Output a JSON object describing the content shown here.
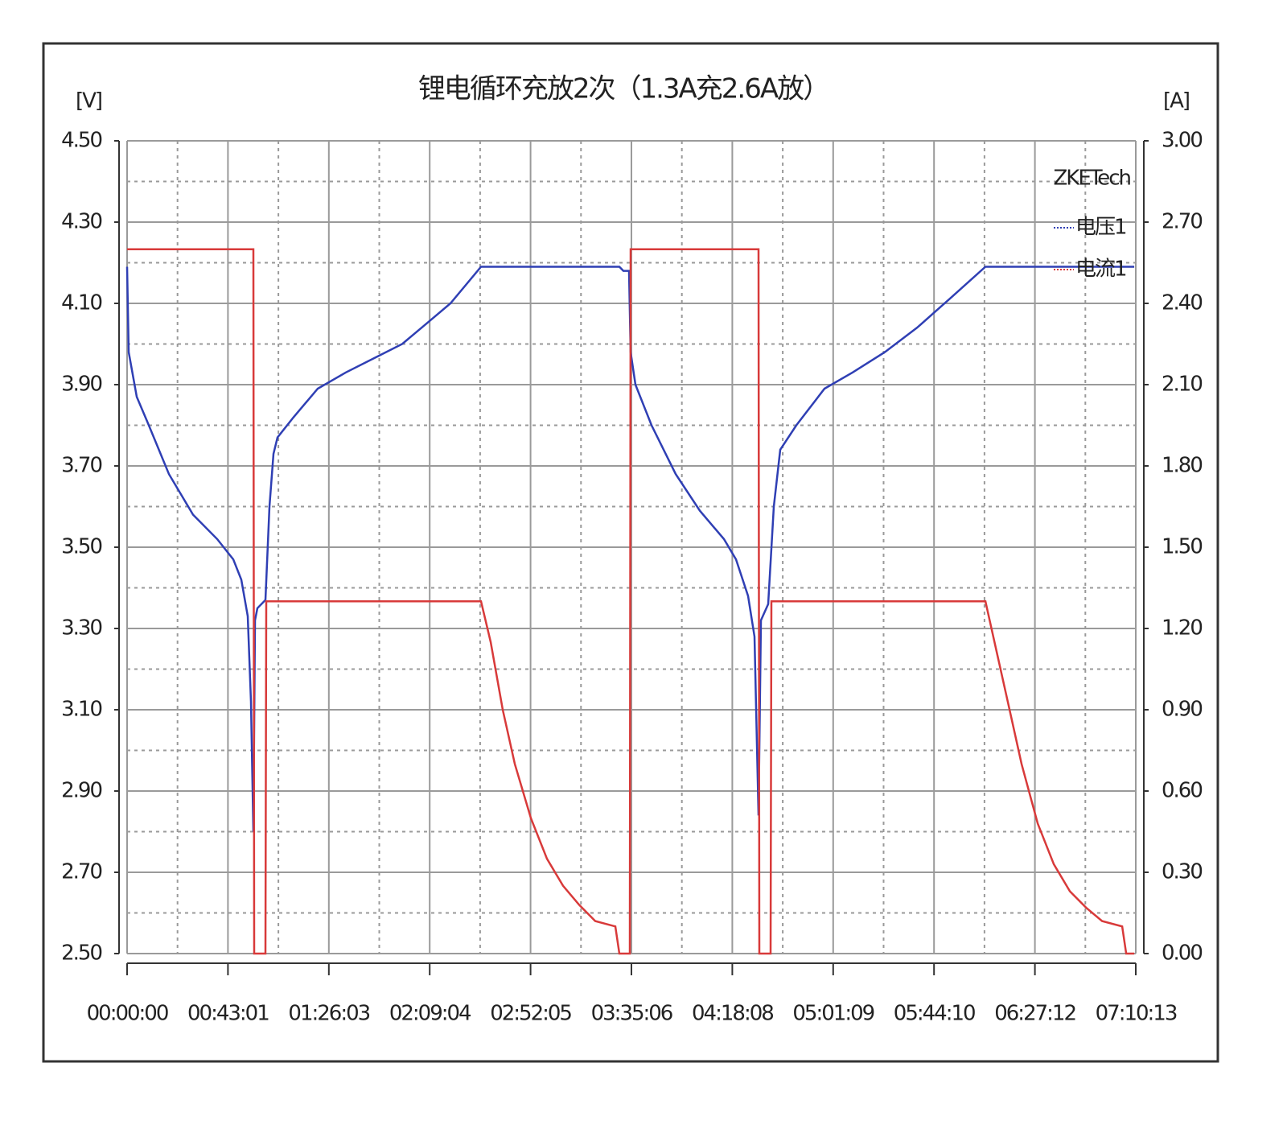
{
  "chart_data": {
    "type": "line",
    "title": "锂电循环充放2次（1.3A充2.6A放）",
    "y_label": "[V]",
    "y2_label": "[A]",
    "watermark": "ZKETech",
    "grid": true,
    "legend": "right",
    "xlim": [
      0,
      25813
    ],
    "xticks": [
      {
        "value": 0,
        "label": "00:00:00"
      },
      {
        "value": 2581,
        "label": "00:43:01"
      },
      {
        "value": 5163,
        "label": "01:26:03"
      },
      {
        "value": 7744,
        "label": "02:09:04"
      },
      {
        "value": 10325,
        "label": "02:52:05"
      },
      {
        "value": 12906,
        "label": "03:35:06"
      },
      {
        "value": 15488,
        "label": "04:18:08"
      },
      {
        "value": 18069,
        "label": "05:01:09"
      },
      {
        "value": 20650,
        "label": "05:44:10"
      },
      {
        "value": 23232,
        "label": "06:27:12"
      },
      {
        "value": 25813,
        "label": "07:10:13"
      }
    ],
    "ylim": [
      2.5,
      4.5
    ],
    "yticks": [
      {
        "value": 2.5,
        "label": "2.50"
      },
      {
        "value": 2.7,
        "label": "2.70"
      },
      {
        "value": 2.9,
        "label": "2.90"
      },
      {
        "value": 3.1,
        "label": "3.10"
      },
      {
        "value": 3.3,
        "label": "3.30"
      },
      {
        "value": 3.5,
        "label": "3.50"
      },
      {
        "value": 3.7,
        "label": "3.70"
      },
      {
        "value": 3.9,
        "label": "3.90"
      },
      {
        "value": 4.1,
        "label": "4.10"
      },
      {
        "value": 4.3,
        "label": "4.30"
      },
      {
        "value": 4.5,
        "label": "4.50"
      }
    ],
    "y2lim": [
      0,
      3
    ],
    "y2ticks": [
      {
        "value": 0,
        "label": "0.00"
      },
      {
        "value": 0.3,
        "label": "0.30"
      },
      {
        "value": 0.6,
        "label": "0.60"
      },
      {
        "value": 0.9,
        "label": "0.90"
      },
      {
        "value": 1.2,
        "label": "1.20"
      },
      {
        "value": 1.5,
        "label": "1.50"
      },
      {
        "value": 1.8,
        "label": "1.80"
      },
      {
        "value": 2.1,
        "label": "2.10"
      },
      {
        "value": 2.4,
        "label": "2.40"
      },
      {
        "value": 2.7,
        "label": "2.70"
      },
      {
        "value": 3,
        "label": "3.00"
      }
    ],
    "series": [
      {
        "name": "电压1",
        "color": "#2f3fb4",
        "x": [
          0,
          41,
          247,
          556,
          1070,
          1688,
          2306,
          2717,
          2923,
          3088,
          3170,
          3232,
          3273,
          3335,
          3541,
          3644,
          3747,
          3849,
          4261,
          4879,
          5599,
          6423,
          7040,
          7658,
          8275,
          9057,
          12598,
          12701,
          12845,
          12886,
          13010,
          13421,
          14039,
          14657,
          15274,
          15583,
          15892,
          16056,
          16159,
          16221,
          16406,
          16550,
          16715,
          17127,
          17847,
          18568,
          19391,
          20215,
          21038,
          21965,
          25773
        ],
        "values": [
          4.19,
          3.98,
          3.87,
          3.8,
          3.68,
          3.58,
          3.52,
          3.47,
          3.42,
          3.33,
          3.12,
          2.8,
          3.32,
          3.35,
          3.37,
          3.6,
          3.73,
          3.77,
          3.82,
          3.89,
          3.93,
          3.97,
          4.0,
          4.05,
          4.1,
          4.19,
          4.19,
          4.18,
          4.18,
          3.98,
          3.9,
          3.8,
          3.68,
          3.59,
          3.52,
          3.47,
          3.38,
          3.28,
          2.84,
          3.32,
          3.36,
          3.6,
          3.74,
          3.8,
          3.89,
          3.93,
          3.98,
          4.04,
          4.11,
          4.19,
          4.19
        ]
      },
      {
        "name": "电流1",
        "color": "#d83a3a",
        "axis": "y2",
        "x": [
          0,
          3232,
          3253,
          3541,
          3561,
          9057,
          9304,
          9613,
          9922,
          10334,
          10745,
          11157,
          11569,
          11980,
          12495,
          12598,
          12866,
          12886,
          16159,
          16180,
          16468,
          16489,
          21965,
          22274,
          22583,
          22891,
          23303,
          23715,
          24127,
          24538,
          24950,
          25465,
          25568,
          25773
        ],
        "values": [
          2.6,
          2.6,
          0,
          0,
          1.3,
          1.3,
          1.15,
          0.9,
          0.7,
          0.5,
          0.35,
          0.25,
          0.18,
          0.12,
          0.1,
          0,
          0,
          2.6,
          2.6,
          0,
          0,
          1.3,
          1.3,
          1.1,
          0.9,
          0.7,
          0.48,
          0.33,
          0.23,
          0.17,
          0.12,
          0.1,
          0,
          0
        ]
      }
    ]
  }
}
